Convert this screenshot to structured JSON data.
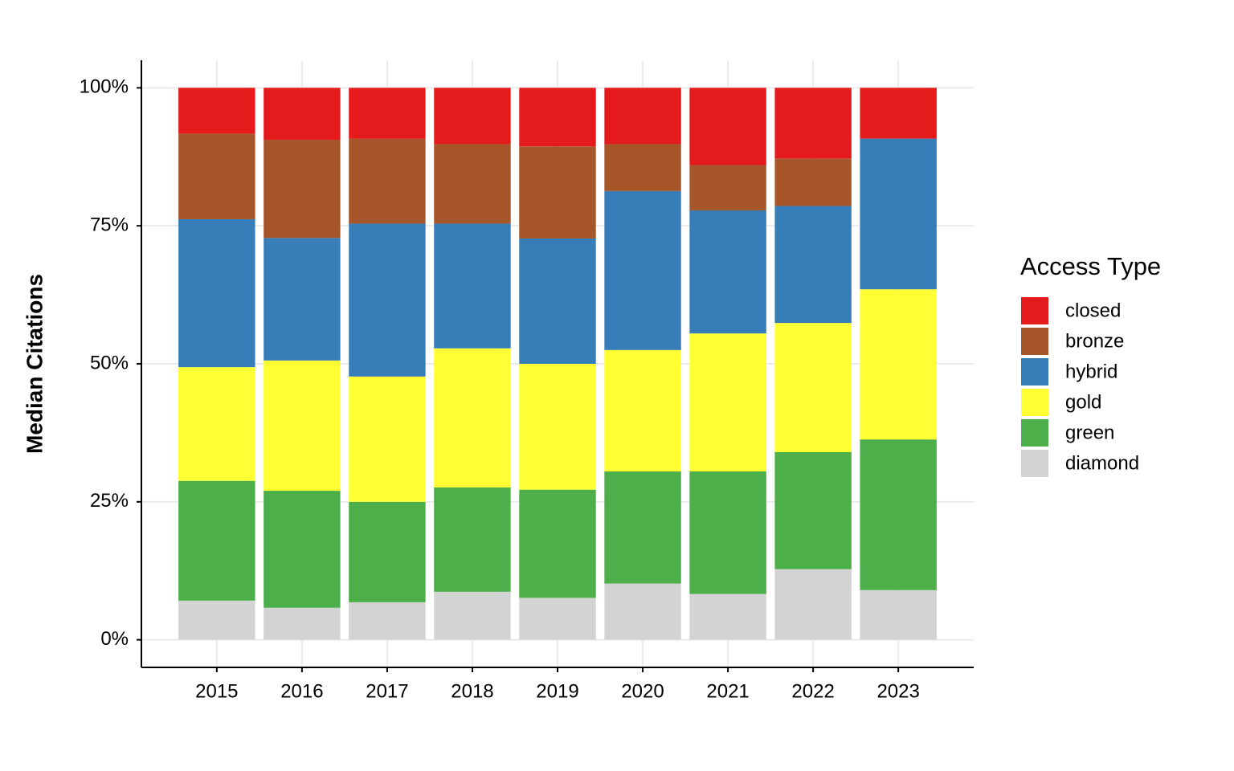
{
  "chart_data": {
    "type": "stacked_bar",
    "y_label": "Median Citations",
    "legend_title": "Access Type",
    "categories": [
      "2015",
      "2016",
      "2017",
      "2018",
      "2019",
      "2020",
      "2021",
      "2022",
      "2023"
    ],
    "series": [
      {
        "name": "closed",
        "color": "#e41a1c",
        "values": [
          8.3,
          9.4,
          9.2,
          10.2,
          10.6,
          10.2,
          14.0,
          12.8,
          9.2
        ]
      },
      {
        "name": "bronze",
        "color": "#a65628",
        "values": [
          15.5,
          17.8,
          15.4,
          14.4,
          16.7,
          8.5,
          8.2,
          8.6,
          0
        ]
      },
      {
        "name": "hybrid",
        "color": "#377eb8",
        "values": [
          26.8,
          22.2,
          27.7,
          22.6,
          22.7,
          28.8,
          22.3,
          21.2,
          27.3
        ]
      },
      {
        "name": "gold",
        "color": "#ffff33",
        "values": [
          20.6,
          23.6,
          22.7,
          25.2,
          22.8,
          22.0,
          25.0,
          23.4,
          27.2
        ]
      },
      {
        "name": "green",
        "color": "#4daf4a",
        "values": [
          21.7,
          21.2,
          18.2,
          18.9,
          19.6,
          20.3,
          22.2,
          21.2,
          27.3
        ]
      },
      {
        "name": "diamond",
        "color": "#d3d3d3",
        "values": [
          7.1,
          5.8,
          6.8,
          8.7,
          7.6,
          10.2,
          8.3,
          12.8,
          9.0
        ]
      }
    ],
    "ylim": [
      -5,
      105
    ],
    "yticks": [
      {
        "value": 0,
        "label": "0%"
      },
      {
        "value": 25,
        "label": "25%"
      },
      {
        "value": 50,
        "label": "50%"
      },
      {
        "value": 75,
        "label": "75%"
      },
      {
        "value": 100,
        "label": "100%"
      }
    ],
    "grid": true,
    "legend_position": "right"
  }
}
